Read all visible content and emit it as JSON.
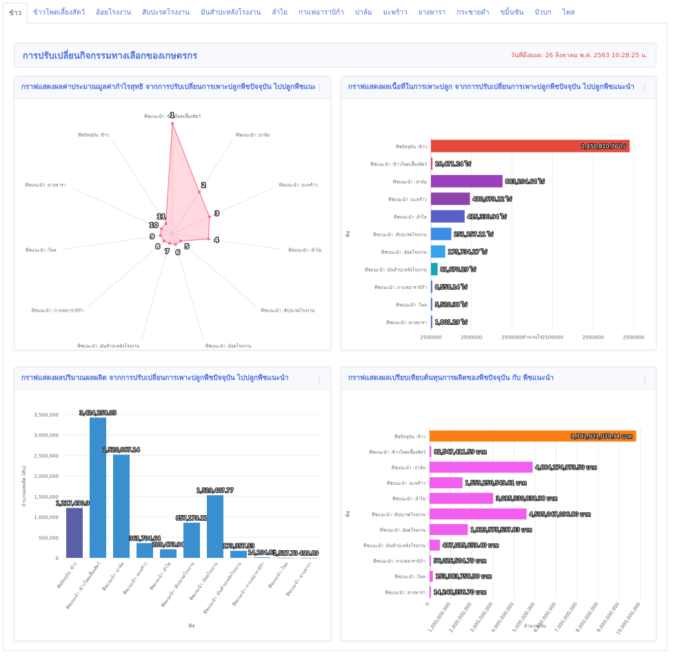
{
  "tabs": [
    "ข้าว",
    "ข้าวโพดเลี้ยงสัตว์",
    "อ้อยโรงงาน",
    "สับปะรดโรงงาน",
    "มันสำปะหลังโรงงาน",
    "ลำไย",
    "กาแฟอาราบิก้า",
    "ปาล์ม",
    "มะพร้าว",
    "ยางพารา",
    "กระชายดำ",
    "ขมิ้นชัน",
    "บัวบก",
    "ไพล"
  ],
  "header": {
    "title": "การปรับเปลี่ยนกิจกรรมทางเลือกของเกษตรกร",
    "date": "วันที่ดึงยอด: 26 สิงหาคม พ.ศ. 2563 10:28:25 น."
  },
  "cards": {
    "radar": {
      "title": "กราฟแสดงผลค่าประมาณมูลค่ากำไรสุทธิ จากการปรับเปลี่ยนการเพาะปลูกพืชปัจจุบัน ไปปลูกพืชแนะนำ"
    },
    "area": {
      "title": "กราฟแสดงผลเนื้อที่ในการเพาะปลูก จากการปรับเปลี่ยนการเพาะปลูกพืชปัจจุบัน ไปปลูกพืชแนะนำ"
    },
    "production": {
      "title": "กราฟแสดงผลปริมาณผลผลิต จากการปรับเปลี่ยนการเพาะปลูกพืชปัจจุบัน ไปปลูกพืชแนะนำ"
    },
    "cost": {
      "title": "กราฟแสดงผลเปรียบเทียบต้นทุนการผลิตของพืชปัจจุบัน กับ พืชแนะนำ"
    }
  },
  "icons": {
    "kebab": "kebab-menu-icon"
  },
  "colors": {
    "accent": "#4e73df",
    "date": "#e74a3b"
  },
  "chart_data": [
    {
      "id": "radar",
      "type": "radar",
      "labels": [
        "พืชแนะนำ :ข้าวโพดเลี้ยงสัตว์",
        "พืชแนะนำ :ปาล์ม",
        "พืชแนะนำ :มะพร้าว",
        "พืชแนะนำ :ลำไย",
        "พืชแนะนำ :สับปะรดโรงงาน",
        "พืชแนะนำ :อ้อยโรงงาน",
        "พืชแนะนำ :มันสำปะหลังโรงงาน",
        "พืชแนะนำ :กาแฟอาราบิก้า",
        "พืชแนะนำ :ไพล",
        "พืชแนะนำ :ยางพารา",
        "พืชปัจจุบัน :ข้าว"
      ],
      "point_labels": [
        "1",
        "2",
        "3",
        "4",
        "5",
        "6",
        "7",
        "8",
        "9",
        "10",
        "11"
      ],
      "values": [
        1.0,
        0.45,
        0.37,
        0.33,
        0.1,
        0.1,
        0.09,
        0.1,
        0.11,
        0.11,
        0.11
      ],
      "colors": {
        "fill": "rgba(255,99,132,0.25)",
        "stroke": "#ff6384"
      }
    },
    {
      "id": "area",
      "type": "bar",
      "orientation": "horizontal",
      "categories": [
        "พืชปัจจุบัน :ข้าว",
        "พืชแนะนำ :ข้าวโพดเลี้ยงสัตว์",
        "พืชแนะนำ :ปาล์ม",
        "พืชแนะนำ :มะพร้าว",
        "พืชแนะนำ :ลำไย",
        "พืชแนะนำ :สับปะรดโรงงาน",
        "พืชแนะนำ :อ้อยโรงงาน",
        "พืชแนะนำ :มันสำปะหลังโรงงาน",
        "พืชแนะนำ :กาแฟอาราบิก้า",
        "พืชแนะนำ :ไพล",
        "พืชแนะนำ :ยางพารา"
      ],
      "values": [
        2450810.76,
        18471.24,
        883204.64,
        480979.12,
        415330.94,
        251157.11,
        175734.27,
        81670.29,
        8558.14,
        5520.38,
        1801.29
      ],
      "value_labels": [
        "2,450,810.76",
        "18,471.24",
        "883,204.64",
        "480,979.12",
        "415,330.94",
        "251,157.11",
        "175,734.27",
        "81,670.29",
        "8,558.14",
        "5,520.38",
        "1,801.29"
      ],
      "unit": "ไร่",
      "colors": [
        "#e74a3b",
        "#e83e8c",
        "#9b3fbf",
        "#8e44ad",
        "#5a5fc7",
        "#3b8ee6",
        "#36a2eb",
        "#17a2b8",
        "#4e73df",
        "#4e73df",
        "#4e73df"
      ],
      "xticks": [
        "2500000",
        "2500000",
        "2500000",
        "2500000",
        "2500000",
        "2500000"
      ],
      "xlabel": "จำนวนไร่",
      "ylabel": "พืช",
      "xlim": [
        0,
        2500000
      ]
    },
    {
      "id": "production",
      "type": "bar",
      "orientation": "vertical",
      "categories": [
        "พืชปัจจุบัน :ข้าว",
        "พืชแนะนำ :ข้าวโพดเลี้ยงสัตว์",
        "พืชแนะนำ :ปาล์ม",
        "พืชแนะนำ :มะพร้าว",
        "พืชแนะนำ :ลำไย",
        "พืชแนะนำ :สับปะรดโรงงาน",
        "พืชแนะนำ :อ้อยโรงงาน",
        "พืชแนะนำ :มันสำปะหลังโรงงาน",
        "พืชแนะนำ :กาแฟอาราบิก้า",
        "พืชแนะนำ :ไพล",
        "พืชแนะนำ :ยางพารา"
      ],
      "values": [
        1217490.96,
        3424258.05,
        2520087.14,
        361704.64,
        209473.94,
        857179.12,
        1529407.77,
        173357.53,
        14104.83,
        1527.73,
        499.89
      ],
      "value_labels": [
        "1,217,490.96",
        "3,424,258.05",
        "2,520,087.14",
        "361,704.64",
        "209,473.94",
        "857,179.12",
        "1,529,407.77",
        "173,357.53",
        "14,104.83",
        "1,527.73",
        "499.89"
      ],
      "colors": [
        "#5a5fa8",
        "#3a8fd0",
        "#3a8fd0",
        "#3a8fd0",
        "#3a8fd0",
        "#3a8fd0",
        "#3a8fd0",
        "#3a8fd0",
        "#3a8fd0",
        "#3a8fd0",
        "#3a8fd0"
      ],
      "yticks": [
        "0",
        "500,000",
        "1,000,000",
        "1,500,000",
        "2,000,000",
        "2,500,000",
        "3,000,000",
        "3,500,000"
      ],
      "ylim": [
        0,
        3500000
      ],
      "xlabel": "พืช",
      "ylabel": "จำนวนผลผลิต (ตัน)"
    },
    {
      "id": "cost",
      "type": "bar",
      "orientation": "horizontal",
      "categories": [
        "พืชปัจจุบัน :ข้าว",
        "พืชแนะนำ :ข้าวโพดเลี้ยงสัตว์",
        "พืชแนะนำ :ปาล์ม",
        "พืชแนะนำ :มะพร้าว",
        "พืชแนะนำ :ลำไย",
        "พืชแนะนำ :สับปะรดโรงงาน",
        "พืชแนะนำ :อ้อยโรงงาน",
        "พืชแนะนำ :มันสำปะหลังโรงงาน",
        "พืชแนะนำ :กาแฟอาราบิก้า",
        "พืชแนะนำ :ไพล",
        "พืชแนะนำ :ยางพารา"
      ],
      "values": [
        9792921079.94,
        82547411.59,
        4884274973.5,
        1559250549.61,
        3015330838.38,
        4595047096.8,
        1813575537.83,
        487015659.4,
        56026504.79,
        153383758.3,
        14248356.7
      ],
      "value_labels": [
        "9,792,921,079.94",
        "82,547,411.59",
        "4,884,274,973.50",
        "1,559,250,549.61",
        "3,015,330,838.38",
        "4,595,047,096.80",
        "1,813,575,537.83",
        "487,015,659.40",
        "56,026,504.79",
        "153,383,758.30",
        "14,248,356.70"
      ],
      "unit": "บาท",
      "colors": [
        "#fd7e14",
        "#f25ff0",
        "#f25ff0",
        "#f25ff0",
        "#f25ff0",
        "#f25ff0",
        "#f25ff0",
        "#f25ff0",
        "#f25ff0",
        "#f25ff0",
        "#f25ff0"
      ],
      "xticks": [
        "0",
        "1,000,000,000",
        "2,000,000,000",
        "3,000,000,000",
        "4,000,000,000",
        "5,000,000,000",
        "6,000,000,000",
        "7,000,000,000",
        "8,000,000,000",
        "9,000,000,000",
        "10,000,000,000"
      ],
      "xlabel": "จำนวนเงิน",
      "ylabel": "พืช",
      "xlim": [
        0,
        10000000000
      ]
    }
  ]
}
